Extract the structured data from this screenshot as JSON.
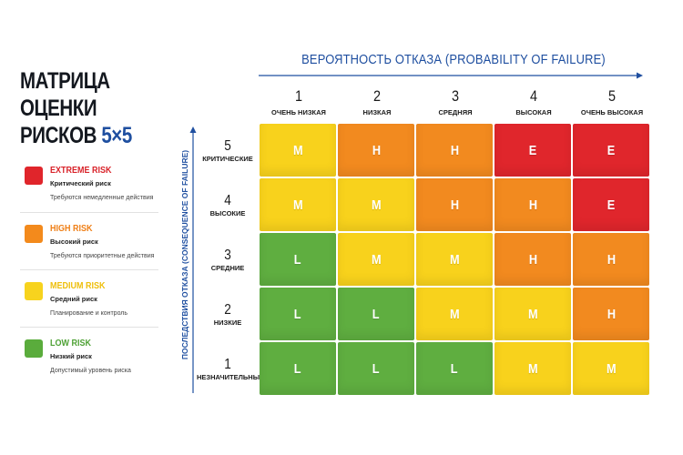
{
  "title": {
    "line1": "МАТРИЦА ОЦЕНКИ",
    "line2": "РИСКОВ",
    "accent": "5×5"
  },
  "x_axis": {
    "title": "ВЕРОЯТНОСТЬ ОТКАЗА (PROBABILITY OF FAILURE)",
    "levels": [
      {
        "num": "1",
        "label": "ОЧЕНЬ НИЗКАЯ"
      },
      {
        "num": "2",
        "label": "НИЗКАЯ"
      },
      {
        "num": "3",
        "label": "СРЕДНЯЯ"
      },
      {
        "num": "4",
        "label": "ВЫСОКАЯ"
      },
      {
        "num": "5",
        "label": "ОЧЕНЬ ВЫСОКАЯ"
      }
    ]
  },
  "y_axis": {
    "title": "ПОСЛЕДСТВИЯ ОТКАЗА (CONSEQUENCE OF FAILURE)",
    "levels": [
      {
        "num": "5",
        "label": "КРИТИЧЕСКИЕ"
      },
      {
        "num": "4",
        "label": "ВЫСОКИЕ"
      },
      {
        "num": "3",
        "label": "СРЕДНИЕ"
      },
      {
        "num": "2",
        "label": "НИЗКИЕ"
      },
      {
        "num": "1",
        "label": "НЕЗНАЧИТЕЛЬНЫЕ"
      }
    ]
  },
  "legend": [
    {
      "code": "E",
      "name": "EXTREME RISK",
      "sub": "Критический риск",
      "desc": "Требуются немедленные действия",
      "color": "#e0252b"
    },
    {
      "code": "H",
      "name": "HIGH RISK",
      "sub": "Высокий риск",
      "desc": "Требуются приоритетные действия",
      "color": "#f38a1c"
    },
    {
      "code": "M",
      "name": "MEDIUM RISK",
      "sub": "Средний риск",
      "desc": "Планирование и контроль",
      "color": "#f7d31e"
    },
    {
      "code": "L",
      "name": "LOW RISK",
      "sub": "Низкий риск",
      "desc": "Допустимый уровень риска",
      "color": "#5aac3c"
    }
  ],
  "name_colors": {
    "E": "#d9232a",
    "H": "#ef7f17",
    "M": "#eebf0c",
    "L": "#4fa236"
  },
  "cell_colors": {
    "E": "#e0262c",
    "H": "#f28a1f",
    "M": "#f8d21c",
    "L": "#5fae40"
  },
  "matrix": [
    [
      "M",
      "H",
      "H",
      "E",
      "E"
    ],
    [
      "M",
      "M",
      "H",
      "H",
      "E"
    ],
    [
      "L",
      "M",
      "M",
      "H",
      "H"
    ],
    [
      "L",
      "L",
      "M",
      "M",
      "H"
    ],
    [
      "L",
      "L",
      "L",
      "M",
      "M"
    ]
  ],
  "axis_color": "#1f4fa0"
}
